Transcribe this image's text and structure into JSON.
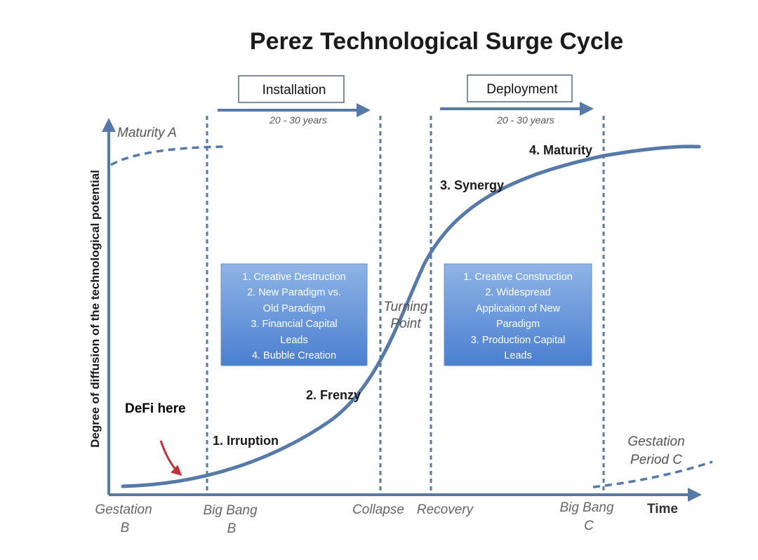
{
  "title": "Perez Technological Surge Cycle",
  "phases": {
    "installation": {
      "label": "Installation",
      "duration": "20 - 30 years"
    },
    "deployment": {
      "label": "Deployment",
      "duration": "20 - 30 years"
    }
  },
  "y_axis_label": "Degree of diffusion of the technological potential",
  "x_axis_label": "Time",
  "top_left_label": "Maturity A",
  "bottom_right_label": [
    "Gestation",
    "Period C"
  ],
  "stages": {
    "irruption": "1. Irruption",
    "frenzy": "2. Frenzy",
    "synergy": "3. Synergy",
    "maturity": "4. Maturity"
  },
  "turning_point": [
    "Turning",
    "Point"
  ],
  "installation_box": [
    "1. Creative Destruction",
    "2. New Paradigm vs.",
    "Old Paradigm",
    "3. Financial Capital",
    "Leads",
    "4. Bubble Creation"
  ],
  "deployment_box": [
    "1. Creative Construction",
    "2. Widespread",
    "Application of New",
    "Paradigm",
    "3. Production Capital",
    "Leads"
  ],
  "x_ticks": {
    "gestation_b": [
      "Gestation",
      "B"
    ],
    "big_bang_b": [
      "Big Bang",
      "B"
    ],
    "collapse": "Collapse",
    "recovery": "Recovery",
    "big_bang_c": [
      "Big Bang",
      "C"
    ]
  },
  "annotation": {
    "text": "DeFi here",
    "arrow_color": "#c0333a"
  },
  "colors": {
    "curve": "#5579a8",
    "box_top": "#8fb4e6",
    "box_bottom": "#4a7fd0",
    "annotation": "#c0333a"
  }
}
